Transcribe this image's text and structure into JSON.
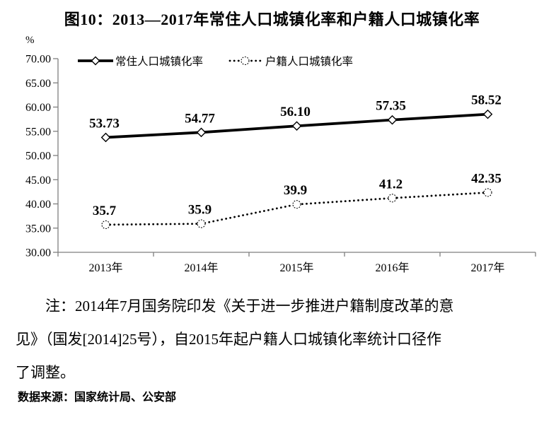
{
  "title": "图10：2013—2017年常住人口城镇化率和户籍人口城镇化率",
  "chart_data": {
    "type": "line",
    "title": "图10：2013—2017年常住人口城镇化率和户籍人口城镇化率",
    "categories": [
      "2013年",
      "2014年",
      "2015年",
      "2016年",
      "2017年"
    ],
    "series": [
      {
        "name": "常住人口城镇化率",
        "values": [
          53.73,
          54.77,
          56.1,
          57.35,
          58.52
        ],
        "labels": [
          "53.73",
          "54.77",
          "56.10",
          "57.35",
          "58.52"
        ],
        "line_style": "solid",
        "marker": "diamond",
        "color": "#000000"
      },
      {
        "name": "户籍人口城镇化率",
        "values": [
          35.7,
          35.9,
          39.9,
          41.2,
          42.35
        ],
        "labels": [
          "35.7",
          "35.9",
          "39.9",
          "41.2",
          "42.35"
        ],
        "line_style": "dotted",
        "marker": "circle",
        "color": "#000000"
      }
    ],
    "ylabel": "%",
    "xlabel": "",
    "ylim": [
      30,
      70
    ],
    "ytick_step": 5,
    "ytick_labels": [
      "30.00",
      "35.00",
      "40.00",
      "45.00",
      "50.00",
      "55.00",
      "60.00",
      "65.00",
      "70.00"
    ],
    "grid": false,
    "legend_position": "top",
    "axis_color": "#7f7f7f",
    "text_color": "#000000"
  },
  "note": {
    "lines": [
      "注：2014年7月国务院印发《关于进一步推进户籍制度改革的意",
      "见》（国发[2014]25号），自2015年起户籍人口城镇化率统计口径作",
      "了调整。"
    ]
  },
  "source": "数据来源：国家统计局、公安部"
}
